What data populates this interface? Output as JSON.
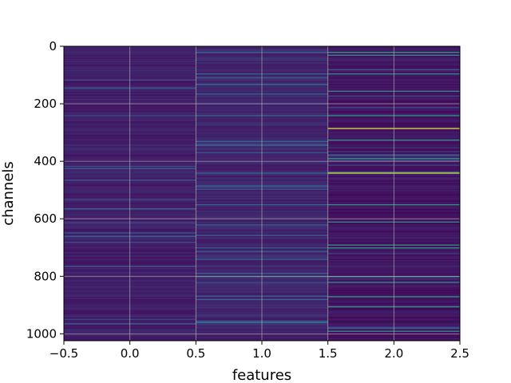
{
  "chart_data": {
    "type": "heatmap",
    "title": "",
    "xlabel": "features",
    "ylabel": "channels",
    "xlim": [
      -0.5,
      2.5
    ],
    "ylim": [
      1024,
      0
    ],
    "x_ticks": [
      -0.5,
      0.0,
      0.5,
      1.0,
      1.5,
      2.0,
      2.5
    ],
    "x_tick_labels": [
      "−0.5",
      "0.0",
      "0.5",
      "1.0",
      "1.5",
      "2.0",
      "2.5"
    ],
    "y_ticks": [
      0,
      200,
      400,
      600,
      800,
      1000
    ],
    "y_tick_labels": [
      "0",
      "200",
      "400",
      "600",
      "800",
      "1000"
    ],
    "grid": true,
    "colormap": "viridis",
    "columns": [
      0,
      1,
      2
    ],
    "rows": 1024,
    "column_base_levels": [
      0.05,
      0.07,
      0.02
    ],
    "highlighted_rows": [
      {
        "feature": 1,
        "rows": [
          20,
          95,
          165,
          240,
          330,
          440,
          550,
          620,
          700,
          740,
          800,
          880,
          960
        ],
        "level": 0.35
      },
      {
        "feature": 2,
        "rows": [
          20,
          30,
          95,
          155,
          240,
          285,
          325,
          390,
          440,
          550,
          610,
          690,
          700,
          800,
          820,
          870,
          905,
          990
        ],
        "level": 0.55
      },
      {
        "feature": 2,
        "rows": [
          285,
          440
        ],
        "level": 0.95
      }
    ]
  },
  "colors": {
    "background": "#ffffff",
    "viridis_dark": "#440154",
    "viridis_mid": "#21918c",
    "viridis_bright": "#fde725",
    "grid": "#b0b0b0"
  }
}
